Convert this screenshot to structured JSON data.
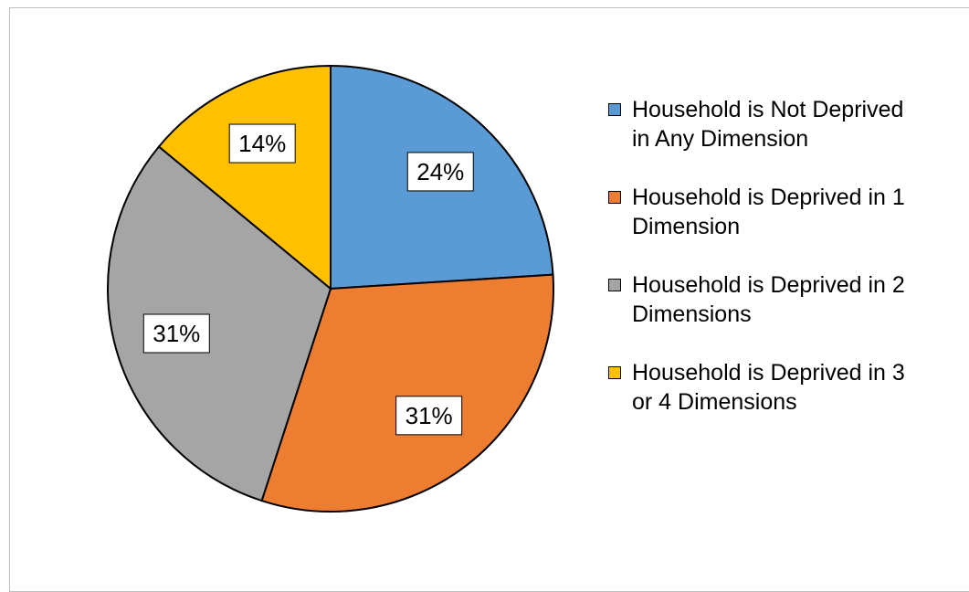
{
  "chart_data": {
    "type": "pie",
    "title": "",
    "legend_position": "right",
    "slices": [
      {
        "label": [
          "Household is Not Deprived",
          "in Any Dimension"
        ],
        "value": 24,
        "display": "24%",
        "color": "#5b9bd5"
      },
      {
        "label": [
          "Household is Deprived in 1",
          "Dimension"
        ],
        "value": 31,
        "display": "31%",
        "color": "#ed7d31"
      },
      {
        "label": [
          "Household is Deprived in 2",
          "Dimensions"
        ],
        "value": 31,
        "display": "31%",
        "color": "#a5a5a5"
      },
      {
        "label": [
          "Household is Deprived in 3",
          "or 4 Dimensions"
        ],
        "value": 14,
        "display": "14%",
        "color": "#ffc000"
      }
    ]
  }
}
